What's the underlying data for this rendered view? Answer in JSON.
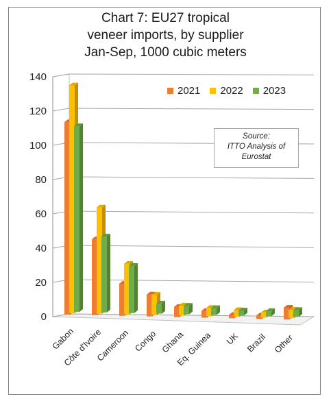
{
  "title_lines": [
    "Chart 7: EU27 tropical",
    "veneer imports, by supplier",
    "Jan-Sep, 1000 cubic meters"
  ],
  "source_lines": [
    "Source:",
    "ITTO Analysis of",
    "Eurostat"
  ],
  "colors": {
    "2021": "#ed7d31",
    "2022": "#ffc000",
    "2023": "#70ad47"
  },
  "chart_data": {
    "type": "bar",
    "title": "Chart 7: EU27 tropical veneer imports, by supplier Jan-Sep, 1000 cubic meters",
    "categories": [
      "Gabon",
      "Côte d'Ivoire",
      "Cameroon",
      "Congo",
      "Ghana",
      "Eq. Guinea",
      "UK",
      "Brazil",
      "Other"
    ],
    "series": [
      {
        "name": "2021",
        "values": [
          114,
          45,
          19,
          13,
          6,
          4,
          2,
          2,
          7
        ]
      },
      {
        "name": "2022",
        "values": [
          135,
          63,
          30,
          12,
          6,
          5,
          4,
          3,
          5
        ]
      },
      {
        "name": "2023",
        "values": [
          110,
          45,
          28,
          6,
          5,
          4,
          3,
          3,
          4
        ]
      }
    ],
    "yticks": [
      0,
      20,
      40,
      60,
      80,
      100,
      120,
      140
    ],
    "ylim": [
      0,
      140
    ],
    "legend": "top-right",
    "grid": true
  }
}
